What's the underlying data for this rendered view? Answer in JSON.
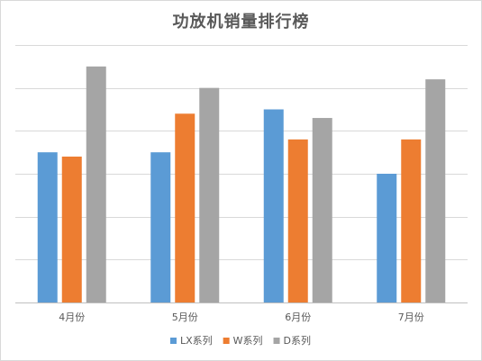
{
  "chart_data": {
    "type": "bar",
    "title": "功放机销量排行榜",
    "categories": [
      "4月份",
      "5月份",
      "6月份",
      "7月份"
    ],
    "series": [
      {
        "name": "LX系列",
        "color": "#5b9bd5",
        "values": [
          3.5,
          3.5,
          4.5,
          3.0
        ]
      },
      {
        "name": "W系列",
        "color": "#ed7d31",
        "values": [
          3.4,
          4.4,
          3.8,
          3.8
        ]
      },
      {
        "name": "D系列",
        "color": "#a5a5a5",
        "values": [
          5.5,
          5.0,
          4.3,
          5.2
        ]
      }
    ],
    "ylim": [
      0,
      6
    ],
    "gridlines": 7,
    "grid": true,
    "legend_position": "bottom"
  }
}
